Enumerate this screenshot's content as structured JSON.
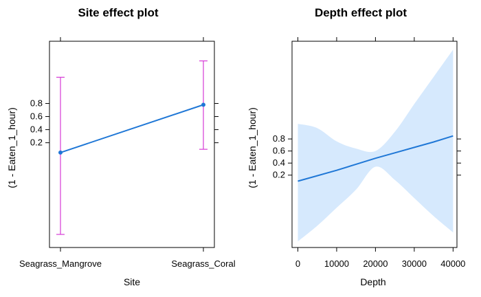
{
  "chart_data": [
    {
      "type": "line",
      "title": "Site effect plot",
      "xlabel": "Site",
      "ylabel": "(1 - Eaten_1_hour)",
      "categories": [
        "Seagrass_Mangrove",
        "Seagrass_Coral"
      ],
      "series": [
        {
          "values": [
            0.05,
            0.78
          ],
          "lower": [
            -1.2,
            0.1
          ],
          "upper": [
            1.2,
            1.45
          ]
        }
      ],
      "yticks": [
        "0.2",
        "0.4",
        "0.6",
        "0.8"
      ],
      "ylim": [
        -1.4,
        1.75
      ],
      "colors": {
        "line": "#1f77d6",
        "errorbar": "#d63ad6"
      }
    },
    {
      "type": "line",
      "title": "Depth effect plot",
      "xlabel": "Depth",
      "ylabel": "(1 - Eaten_1_hour)",
      "x": [
        0,
        5000,
        10000,
        15000,
        20000,
        25000,
        30000,
        35000,
        40000
      ],
      "series": [
        {
          "values": [
            0.1,
            0.19,
            0.28,
            0.38,
            0.48,
            0.57,
            0.66,
            0.75,
            0.85
          ],
          "lower": [
            -0.9,
            -0.64,
            -0.34,
            -0.04,
            0.34,
            0.12,
            -0.18,
            -0.48,
            -0.75
          ],
          "upper": [
            1.05,
            0.98,
            0.76,
            0.64,
            0.6,
            0.92,
            1.38,
            1.83,
            2.28
          ]
        }
      ],
      "xticks": [
        "0",
        "10000",
        "20000",
        "30000",
        "40000"
      ],
      "xtick_values": [
        0,
        10000,
        20000,
        30000,
        40000
      ],
      "yticks": [
        "0.2",
        "0.4",
        "0.6",
        "0.8"
      ],
      "xlim": [
        -1500,
        41000
      ],
      "ylim": [
        -1.0,
        2.42
      ],
      "colors": {
        "line": "#1f77d6",
        "band": "#d6e9fd"
      }
    }
  ]
}
